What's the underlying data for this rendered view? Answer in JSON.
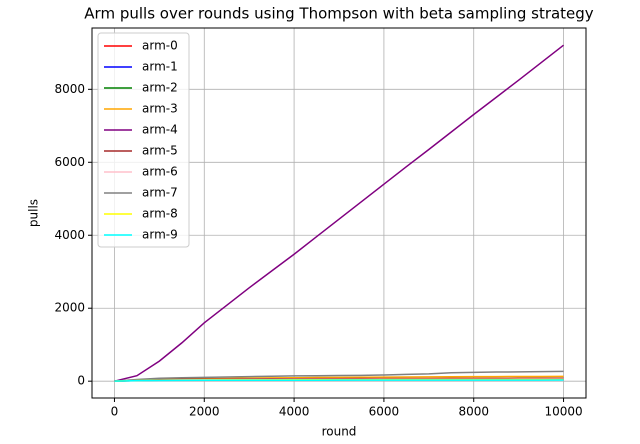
{
  "chart_data": {
    "type": "line",
    "title": "Arm pulls over rounds using Thompson with beta sampling strategy",
    "x_label": "round",
    "y_label": "pulls",
    "x": [
      0,
      500,
      1000,
      1500,
      2000,
      2500,
      3000,
      3500,
      4000,
      4500,
      5000,
      5500,
      6000,
      6500,
      7000,
      7500,
      8000,
      8500,
      9000,
      9500,
      10000
    ],
    "series": [
      {
        "name": "arm-0",
        "color": "red",
        "values": [
          0,
          20,
          28,
          32,
          35,
          37,
          38,
          39,
          40,
          41,
          42,
          42,
          43,
          43,
          44,
          44,
          45,
          45,
          45,
          46,
          46
        ]
      },
      {
        "name": "arm-1",
        "color": "blue",
        "values": [
          0,
          18,
          25,
          29,
          31,
          33,
          34,
          35,
          36,
          37,
          37,
          38,
          38,
          39,
          39,
          39,
          40,
          40,
          40,
          41,
          41
        ]
      },
      {
        "name": "arm-2",
        "color": "green",
        "values": [
          0,
          22,
          32,
          38,
          42,
          45,
          47,
          49,
          50,
          51,
          52,
          53,
          54,
          55,
          55,
          56,
          56,
          57,
          57,
          58,
          58
        ]
      },
      {
        "name": "arm-3",
        "color": "orange",
        "values": [
          0,
          30,
          50,
          62,
          70,
          78,
          85,
          90,
          95,
          100,
          104,
          108,
          112,
          115,
          118,
          121,
          124,
          126,
          128,
          130,
          132
        ]
      },
      {
        "name": "arm-4",
        "color": "purple",
        "values": [
          0,
          150,
          550,
          1050,
          1600,
          2080,
          2560,
          3020,
          3480,
          3960,
          4440,
          4920,
          5400,
          5880,
          6350,
          6830,
          7310,
          7780,
          8250,
          8730,
          9210
        ]
      },
      {
        "name": "arm-5",
        "color": "brown",
        "values": [
          0,
          25,
          40,
          48,
          54,
          58,
          62,
          65,
          67,
          69,
          71,
          72,
          73,
          74,
          75,
          76,
          77,
          78,
          79,
          80,
          80
        ]
      },
      {
        "name": "arm-6",
        "color": "pink",
        "values": [
          0,
          20,
          30,
          36,
          40,
          43,
          45,
          47,
          48,
          49,
          50,
          51,
          52,
          52,
          53,
          53,
          54,
          54,
          55,
          55,
          56
        ]
      },
      {
        "name": "arm-7",
        "color": "gray",
        "values": [
          0,
          45,
          80,
          95,
          105,
          115,
          125,
          135,
          145,
          150,
          155,
          160,
          170,
          185,
          200,
          230,
          240,
          250,
          255,
          262,
          268
        ]
      },
      {
        "name": "arm-8",
        "color": "yellow",
        "values": [
          0,
          18,
          26,
          30,
          33,
          35,
          36,
          37,
          38,
          39,
          40,
          40,
          41,
          41,
          42,
          42,
          42,
          43,
          43,
          43,
          44
        ]
      },
      {
        "name": "arm-9",
        "color": "cyan",
        "values": [
          0,
          15,
          20,
          22,
          24,
          25,
          26,
          26,
          27,
          27,
          28,
          28,
          28,
          29,
          29,
          29,
          30,
          30,
          30,
          30,
          31
        ]
      }
    ],
    "xlim": [
      -500,
      10500
    ],
    "ylim": [
      -461,
      9681
    ],
    "xticks": [
      0,
      2000,
      4000,
      6000,
      8000,
      10000
    ],
    "yticks": [
      0,
      2000,
      4000,
      6000,
      8000
    ],
    "grid": true,
    "legend": "upper-left"
  }
}
